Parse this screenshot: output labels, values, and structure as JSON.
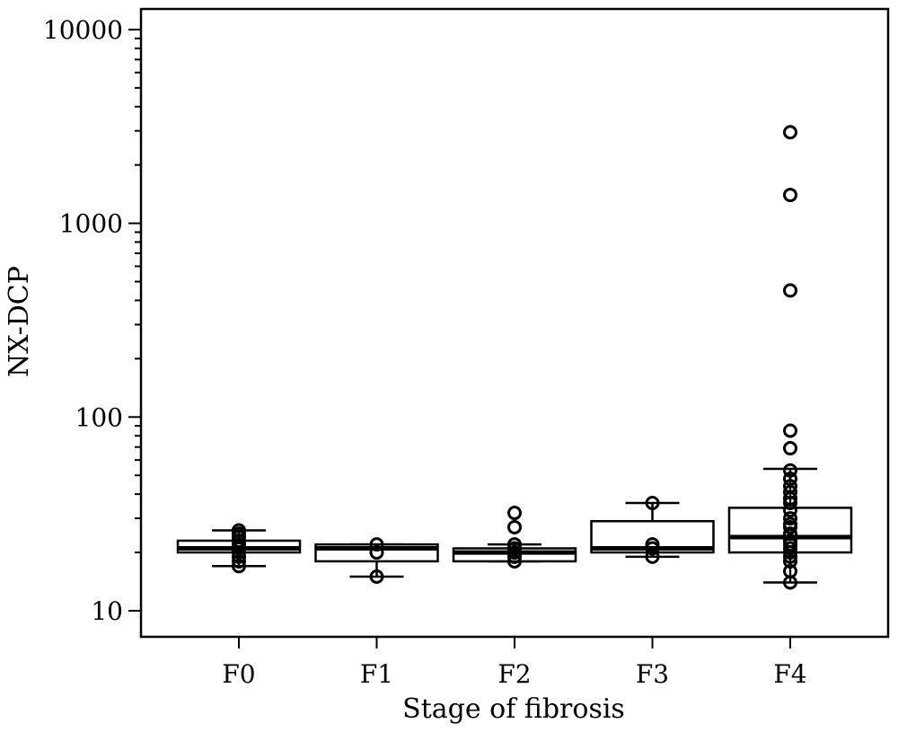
{
  "chart_data": {
    "type": "box",
    "xlabel": "Stage of fibrosis",
    "ylabel": "NX-DCP",
    "yscale": "log",
    "ylim": [
      8.7,
      12000
    ],
    "yticks": [
      10,
      100,
      1000,
      10000
    ],
    "ytick_labels": [
      "10",
      "100",
      "1000",
      "10000"
    ],
    "grid": false,
    "legend": "none",
    "categories": [
      "F0",
      "F1",
      "F2",
      "F3",
      "F4"
    ],
    "boxes": [
      {
        "category": "F0",
        "whisker_low": 17,
        "q1": 20,
        "median": 21,
        "q3": 23,
        "whisker_high": 26,
        "outliers": [
          17,
          18,
          19,
          20,
          21,
          22,
          23,
          24,
          25,
          26
        ]
      },
      {
        "category": "F1",
        "whisker_low": 15,
        "q1": 18,
        "median": 21,
        "q3": 22,
        "whisker_high": 22,
        "outliers": [
          15,
          20,
          22
        ]
      },
      {
        "category": "F2",
        "whisker_low": 18,
        "q1": 18,
        "median": 20,
        "q3": 21,
        "whisker_high": 22,
        "outliers": [
          18,
          19,
          20,
          21,
          22,
          27,
          32
        ]
      },
      {
        "category": "F3",
        "whisker_low": 19,
        "q1": 20,
        "median": 21,
        "q3": 29,
        "whisker_high": 36,
        "outliers": [
          19,
          21,
          22,
          36
        ]
      },
      {
        "category": "F4",
        "whisker_low": 14,
        "q1": 20,
        "median": 24,
        "q3": 34,
        "whisker_high": 54,
        "outliers": [
          14,
          16,
          18,
          19,
          20,
          21,
          22,
          23,
          25,
          27,
          28,
          30,
          33,
          36,
          38,
          41,
          44,
          48,
          53,
          69,
          85,
          450,
          1400,
          2950
        ]
      }
    ]
  }
}
